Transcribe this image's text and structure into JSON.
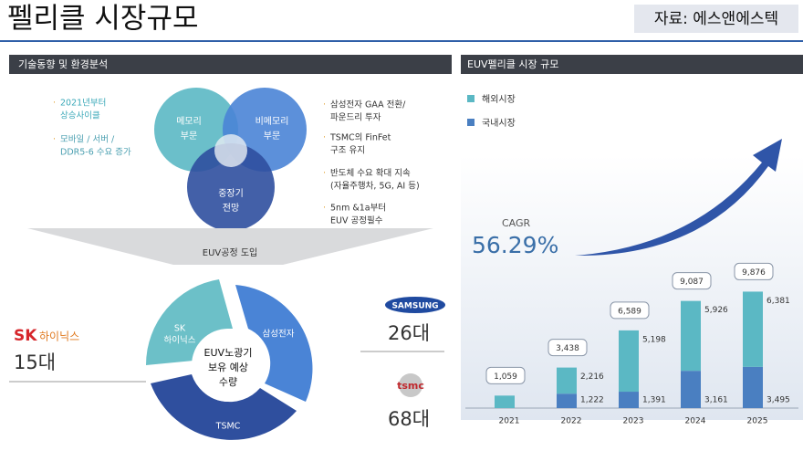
{
  "header": {
    "title": "펠리클 시장규모",
    "source": "자료: 에스앤에스텍"
  },
  "left_panel": {
    "title": "기술동향 및 환경분석",
    "venn": {
      "memory": [
        "메모리",
        "부문"
      ],
      "non_memory": [
        "비메모리",
        "부문"
      ],
      "outlook": [
        "중장기",
        "전망"
      ]
    },
    "left_bullets": [
      [
        "2021년부터",
        "상승사이클"
      ],
      [
        "모바일 / 서버 /",
        "DDR5-6 수요 증가"
      ]
    ],
    "right_bullets": [
      [
        "삼성전자 GAA 전환/",
        "파운드리 투자"
      ],
      [
        "TSMC의 FinFet",
        "구조 유지"
      ],
      [
        "반도체 수요 확대 지속",
        "(자율주행차, 5G, AI 등)"
      ],
      [
        "5nm &1a부터",
        "EUV 공정필수"
      ]
    ],
    "funnel": "EUV공정 도입",
    "cycle": {
      "sk": [
        "SK",
        "하이닉스"
      ],
      "samsung": "삼성전자",
      "tsmc": "TSMC",
      "center": [
        "EUV노광기",
        "보유 예상",
        "수량"
      ]
    },
    "companies": [
      {
        "logo": [
          "SK",
          "하이닉스"
        ],
        "count": "15대"
      },
      {
        "logo": [
          "SAMSUNG"
        ],
        "count": "26대"
      },
      {
        "logo": [
          "tsmc"
        ],
        "count": "68대"
      }
    ]
  },
  "chart_data": {
    "type": "stacked_bar",
    "title": "EUV펠리클 시장 규모",
    "categories": [
      "2021",
      "2022",
      "2023",
      "2024",
      "2025"
    ],
    "series": [
      {
        "name": "해외시장",
        "color": "#5bb8c4",
        "values": [
          1059,
          2216,
          5198,
          5926,
          6381
        ],
        "value_labels": [
          null,
          "2,216",
          "5,198",
          "5,926",
          "6,381"
        ]
      },
      {
        "name": "국내시장",
        "color": "#4a7fc1",
        "values": [
          null,
          1222,
          1391,
          3161,
          3495
        ],
        "value_labels": [
          null,
          "1,222",
          "1,391",
          "3,161",
          "3,495"
        ]
      }
    ],
    "totals": [
      1059,
      3438,
      6589,
      9087,
      9876
    ],
    "total_labels": [
      "1,059",
      "3,438",
      "6,589",
      "9,087",
      "9,876"
    ],
    "annotation": {
      "label": "CAGR",
      "value": "56.29%"
    },
    "ylim": [
      0,
      12000
    ]
  }
}
